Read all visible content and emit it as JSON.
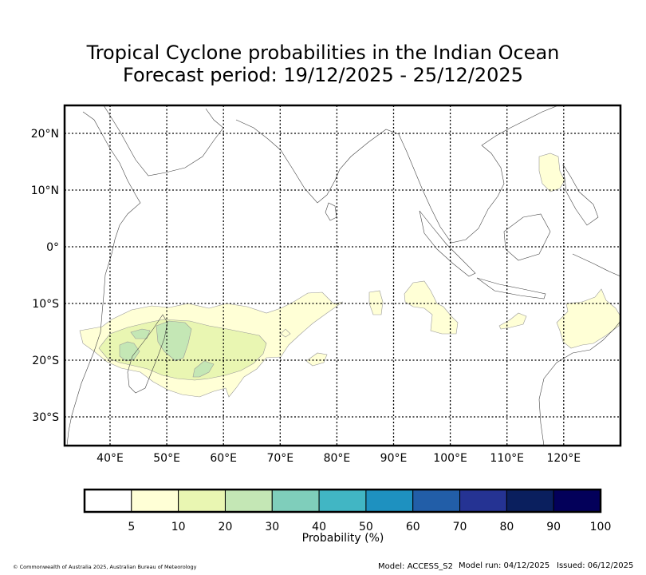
{
  "title": {
    "line1": "Tropical Cyclone probabilities in the Indian Ocean",
    "line2": "Forecast period: 19/12/2025 - 25/12/2025"
  },
  "map": {
    "lon_ticks": [
      "40°E",
      "50°E",
      "60°E",
      "70°E",
      "80°E",
      "90°E",
      "100°E",
      "110°E",
      "120°E"
    ],
    "lat_ticks": [
      "20°N",
      "10°N",
      "0°",
      "10°S",
      "20°S",
      "30°S"
    ]
  },
  "colorbar": {
    "label": "Probability (%)",
    "ticks": [
      "5",
      "10",
      "20",
      "30",
      "40",
      "50",
      "60",
      "70",
      "80",
      "90",
      "100"
    ],
    "colors": [
      "#ffffff",
      "#ffffd6",
      "#e9f6b2",
      "#c4e7b5",
      "#7fcebb",
      "#41b6c4",
      "#1e91c0",
      "#225ea8",
      "#253393",
      "#0a1f5e",
      "#03005a"
    ]
  },
  "footer": {
    "copyright": "© Commonwealth of Australia 2025, Australian Bureau of Meteorology",
    "model": "Model: ACCESS_S2",
    "model_run": "Model run: 04/12/2025",
    "issued": "Issued: 06/12/2025"
  }
}
